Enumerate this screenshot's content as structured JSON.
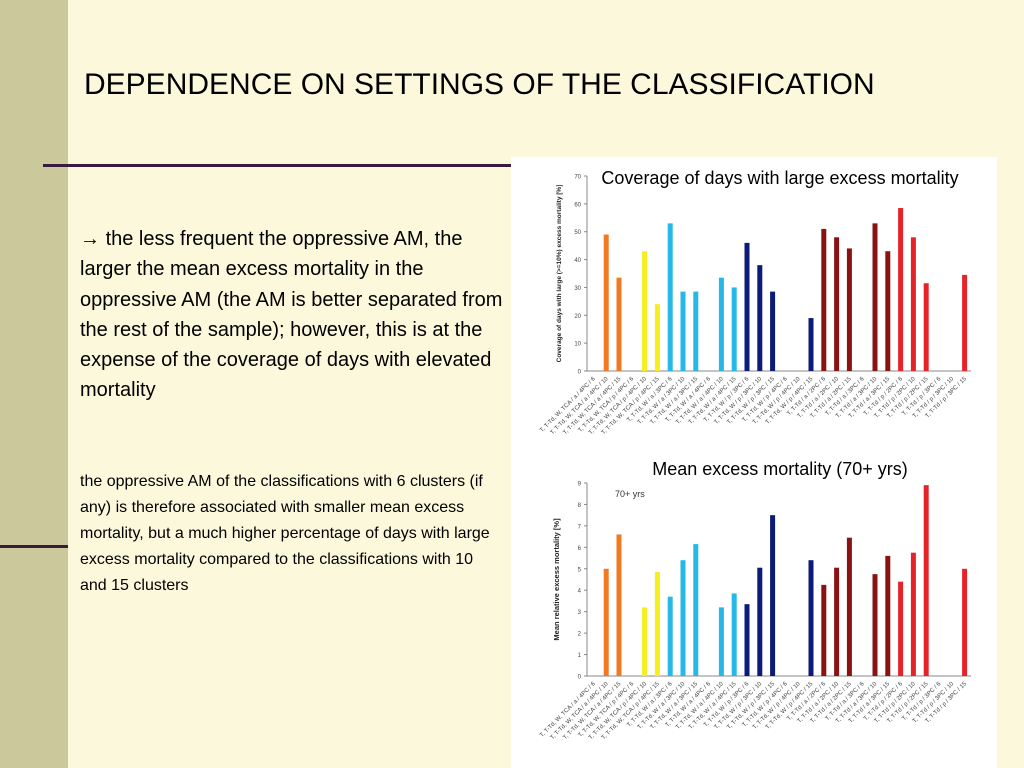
{
  "slide": {
    "title": "DEPENDENCE ON SETTINGS OF THE CLASSIFICATION",
    "bullet_arrow": "→",
    "paragraph1": "the less frequent the oppressive AM, the larger the mean excess mortality in the oppressive AM (the AM is better separated from the rest of the sample); however, this is at the expense of the coverage of days with elevated mortality",
    "paragraph2": "the oppressive AM of the classifications with 6 clusters (if any) is therefore associated with smaller mean excess mortality, but a much higher percentage of days with large excess mortality compared to the classifications with 10 and 15 clusters"
  },
  "colors": {
    "orange": "#f07a22",
    "yellow": "#f6ee1e",
    "lightblue": "#26b8e6",
    "navy": "#0c1a78",
    "darkred": "#8b1212",
    "red": "#e5242a"
  },
  "chart_data": [
    {
      "type": "bar",
      "title": "Coverage of days with large excess mortality",
      "ylabel": "Coverage of days with large (>=10%) excess mortality [%]",
      "ylim": [
        0,
        70
      ],
      "yticks": [
        "0",
        "10",
        "20",
        "30",
        "40",
        "50",
        "60",
        "70"
      ],
      "grid": false,
      "categories": [
        "T, T-Td, W, TCA / a / 4PC / 6",
        "T, T-Td, W, TCA / a / 4PC / 10",
        "T, T-Td, W, TCA / a / 4PC / 15",
        "T, T-Td, W, TCA / p / 4PC / 6",
        "T, T-Td, W, TCA / p / 4PC / 10",
        "T, T-Td, W, TCA / p / 4PC / 15",
        "T, T-Td, W / a / 3PC / 6",
        "T, T-Td, W / a / 3PC / 10",
        "T, T-Td, W / a / 3PC / 15",
        "T, T-Td, W / a / 4PC / 6",
        "T, T-Td, W / a / 4PC / 10",
        "T, T-Td, W / a / 4PC / 15",
        "T, T-Td, W / p / 3PC / 6",
        "T, T-Td, W / p / 3PC / 10",
        "T, T-Td, W / p / 3PC / 15",
        "T, T-Td, W / p / 4PC / 6",
        "T, T-Td, W / p / 4PC / 10",
        "T, T-Td, W / p / 4PC / 15",
        "T, T-Td / a / 2PC / 6",
        "T, T-Td / a / 2PC / 10",
        "T, T-Td / a / 2PC / 15",
        "T, T-Td / a / 3PC / 6",
        "T, T-Td / a / 3PC / 10",
        "T, T-Td / a / 3PC / 15",
        "T, T-Td / p / 2PC / 6",
        "T, T-Td / p / 2PC / 10",
        "T, T-Td / p / 2PC / 15",
        "T, T-Td / p / 3PC / 6",
        "T, T-Td / p / 3PC / 10",
        "T, T-Td / p / 3PC / 15"
      ],
      "values": [
        null,
        49,
        33.5,
        null,
        43,
        24,
        53,
        28.5,
        28.5,
        null,
        33.5,
        30,
        46,
        38,
        28.5,
        null,
        null,
        19,
        51,
        48,
        44,
        null,
        53,
        43,
        58.5,
        48,
        31.5,
        null,
        null,
        34.5
      ],
      "colors": [
        "orange",
        "orange",
        "orange",
        "yellow",
        "yellow",
        "yellow",
        "lightblue",
        "lightblue",
        "lightblue",
        "lightblue",
        "lightblue",
        "lightblue",
        "navy",
        "navy",
        "navy",
        "navy",
        "navy",
        "navy",
        "darkred",
        "darkred",
        "darkred",
        "darkred",
        "darkred",
        "darkred",
        "red",
        "red",
        "red",
        "red",
        "red",
        "red"
      ]
    },
    {
      "type": "bar",
      "title": "Mean excess mortality (70+ yrs)",
      "annotation": "70+ yrs",
      "ylabel": "Mean relative excess mortality [%]",
      "ylim": [
        0,
        9
      ],
      "yticks": [
        "0",
        "1",
        "2",
        "3",
        "4",
        "5",
        "6",
        "7",
        "8",
        "9"
      ],
      "grid": false,
      "categories": [
        "T, T-Td, W, TCA / a / 4PC / 6",
        "T, T-Td, W, TCA / a / 4PC / 10",
        "T, T-Td, W, TCA / a / 4PC / 15",
        "T, T-Td, W, TCA / p / 4PC / 6",
        "T, T-Td, W, TCA / p / 4PC / 10",
        "T, T-Td, W, TCA / p / 4PC / 15",
        "T, T-Td, W / a / 3PC / 6",
        "T, T-Td, W / a / 3PC / 10",
        "T, T-Td, W / a / 3PC / 15",
        "T, T-Td, W / a / 4PC / 6",
        "T, T-Td, W / a / 4PC / 10",
        "T, T-Td, W / a / 4PC / 15",
        "T, T-Td, W / p / 3PC / 6",
        "T, T-Td, W / p / 3PC / 10",
        "T, T-Td, W / p / 3PC / 15",
        "T, T-Td, W / p / 4PC / 6",
        "T, T-Td, W / p / 4PC / 10",
        "T, T-Td, W / p / 4PC / 15",
        "T, T-Td / a / 2PC / 6",
        "T, T-Td / a / 2PC / 10",
        "T, T-Td / a / 2PC / 15",
        "T, T-Td / a / 3PC / 6",
        "T, T-Td / a / 3PC / 10",
        "T, T-Td / a / 3PC / 15",
        "T, T-Td / p / 2PC / 6",
        "T, T-Td / p / 2PC / 10",
        "T, T-Td / p / 2PC / 15",
        "T, T-Td / p / 3PC / 6",
        "T, T-Td / p / 3PC / 10",
        "T, T-Td / p / 3PC / 15"
      ],
      "values": [
        null,
        5.0,
        6.6,
        null,
        3.2,
        4.85,
        3.7,
        5.4,
        6.15,
        null,
        3.2,
        3.85,
        3.35,
        5.05,
        7.5,
        null,
        null,
        5.4,
        4.25,
        5.05,
        6.45,
        null,
        4.75,
        5.6,
        4.4,
        5.75,
        8.9,
        null,
        null,
        5.0
      ],
      "colors": [
        "orange",
        "orange",
        "orange",
        "yellow",
        "yellow",
        "yellow",
        "lightblue",
        "lightblue",
        "lightblue",
        "lightblue",
        "lightblue",
        "lightblue",
        "navy",
        "navy",
        "navy",
        "navy",
        "navy",
        "navy",
        "darkred",
        "darkred",
        "darkred",
        "darkred",
        "darkred",
        "darkred",
        "red",
        "red",
        "red",
        "red",
        "red",
        "red"
      ]
    }
  ]
}
